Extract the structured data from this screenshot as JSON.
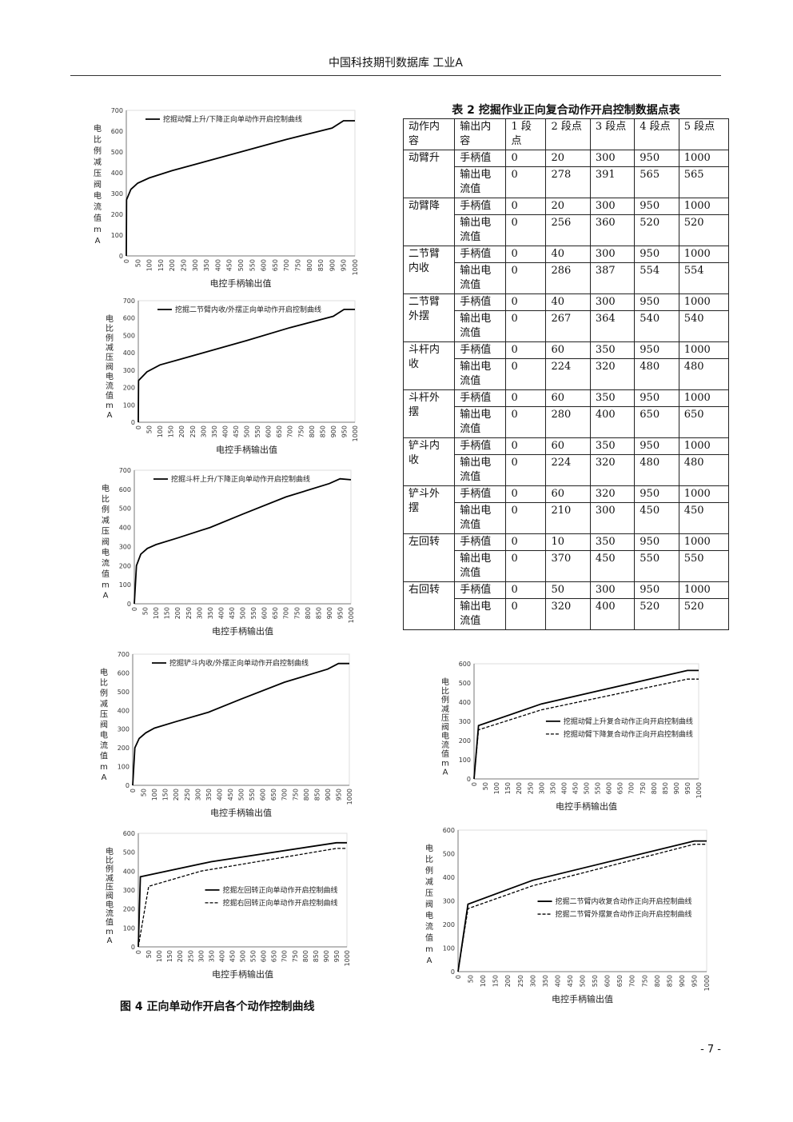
{
  "header": "中国科技期刊数据库 工业A",
  "table": {
    "title": "表 2 挖掘作业正向复合动作开启控制数据点表",
    "headers": [
      "动作内容",
      "输出内容",
      "1 段点",
      "2 段点",
      "3 段点",
      "4 段点",
      "5 段点"
    ],
    "groups": [
      {
        "action": "动臂升",
        "rows": [
          [
            "手柄值",
            "0",
            "20",
            "300",
            "950",
            "1000"
          ],
          [
            "输出电流值",
            "0",
            "278",
            "391",
            "565",
            "565"
          ]
        ]
      },
      {
        "action": "动臂降",
        "rows": [
          [
            "手柄值",
            "0",
            "20",
            "300",
            "950",
            "1000"
          ],
          [
            "输出电流值",
            "0",
            "256",
            "360",
            "520",
            "520"
          ]
        ]
      },
      {
        "action": "二节臂内收",
        "rows": [
          [
            "手柄值",
            "0",
            "40",
            "300",
            "950",
            "1000"
          ],
          [
            "输出电流值",
            "0",
            "286",
            "387",
            "554",
            "554"
          ]
        ]
      },
      {
        "action": "二节臂外摆",
        "rows": [
          [
            "手柄值",
            "0",
            "40",
            "300",
            "950",
            "1000"
          ],
          [
            "输出电流值",
            "0",
            "267",
            "364",
            "540",
            "540"
          ]
        ]
      },
      {
        "action": "斗杆内收",
        "rows": [
          [
            "手柄值",
            "0",
            "60",
            "350",
            "950",
            "1000"
          ],
          [
            "输出电流值",
            "0",
            "224",
            "320",
            "480",
            "480"
          ]
        ]
      },
      {
        "action": "斗杆外摆",
        "rows": [
          [
            "手柄值",
            "0",
            "60",
            "350",
            "950",
            "1000"
          ],
          [
            "输出电流值",
            "0",
            "280",
            "400",
            "650",
            "650"
          ]
        ]
      },
      {
        "action": "铲斗内收",
        "rows": [
          [
            "手柄值",
            "0",
            "60",
            "350",
            "950",
            "1000"
          ],
          [
            "输出电流值",
            "0",
            "224",
            "320",
            "480",
            "480"
          ]
        ]
      },
      {
        "action": "铲斗外摆",
        "rows": [
          [
            "手柄值",
            "0",
            "60",
            "320",
            "950",
            "1000"
          ],
          [
            "输出电流值",
            "0",
            "210",
            "300",
            "450",
            "450"
          ]
        ]
      },
      {
        "action": "左回转",
        "rows": [
          [
            "手柄值",
            "0",
            "10",
            "350",
            "950",
            "1000"
          ],
          [
            "输出电流值",
            "0",
            "370",
            "450",
            "550",
            "550"
          ]
        ]
      },
      {
        "action": "右回转",
        "rows": [
          [
            "手柄值",
            "0",
            "50",
            "300",
            "950",
            "1000"
          ],
          [
            "输出电流值",
            "0",
            "320",
            "400",
            "520",
            "520"
          ]
        ]
      }
    ]
  },
  "figure_caption": "图 4 正向单动作开启各个动作控制曲线",
  "page_number": "- 7 -",
  "chart_data": [
    {
      "type": "line",
      "xlabel": "电控手柄输出值",
      "ylabel": "电比例减压阀电流值mA",
      "ylim": [
        0,
        700
      ],
      "yticks": [
        "0",
        "100",
        "200",
        "300",
        "400",
        "500",
        "600",
        "700"
      ],
      "xlim": [
        0,
        1000
      ],
      "xticks": [
        "0",
        "50",
        "100",
        "150",
        "200",
        "250",
        "300",
        "350",
        "400",
        "450",
        "500",
        "550",
        "600",
        "650",
        "700",
        "750",
        "800",
        "850",
        "900",
        "950",
        "1000"
      ],
      "legend_position": "top",
      "series": [
        {
          "name": "挖掘动臂上升/下降正向单动作开启控制曲线",
          "style": "solid",
          "x": [
            0,
            1,
            20,
            50,
            100,
            200,
            300,
            500,
            700,
            900,
            950,
            1000
          ],
          "y": [
            0,
            270,
            320,
            350,
            375,
            410,
            440,
            500,
            560,
            615,
            650,
            650
          ]
        }
      ]
    },
    {
      "type": "line",
      "xlabel": "电控手柄输出值",
      "ylabel": "电比例减压阀电流值mA",
      "ylim": [
        0,
        700
      ],
      "yticks": [
        "0",
        "100",
        "200",
        "300",
        "400",
        "500",
        "600",
        "700"
      ],
      "xlim": [
        0,
        1000
      ],
      "xticks": [
        "0",
        "50",
        "100",
        "150",
        "200",
        "250",
        "300",
        "350",
        "400",
        "450",
        "500",
        "550",
        "600",
        "650",
        "700",
        "750",
        "800",
        "850",
        "900",
        "950",
        "1000"
      ],
      "legend_position": "top",
      "series": [
        {
          "name": "挖掘二节臂内收/外摆正向单动作开启控制曲线",
          "style": "solid",
          "x": [
            0,
            1,
            40,
            100,
            200,
            300,
            500,
            700,
            900,
            950,
            1000
          ],
          "y": [
            0,
            240,
            290,
            330,
            365,
            400,
            470,
            545,
            610,
            650,
            650
          ]
        }
      ]
    },
    {
      "type": "line",
      "xlabel": "电控手柄输出值",
      "ylabel": "电比例减压阀电流值mA",
      "ylim": [
        0,
        700
      ],
      "yticks": [
        "0",
        "100",
        "200",
        "300",
        "400",
        "500",
        "600",
        "700"
      ],
      "xlim": [
        0,
        1000
      ],
      "xticks": [
        "0",
        "50",
        "100",
        "150",
        "200",
        "250",
        "300",
        "350",
        "400",
        "450",
        "500",
        "550",
        "600",
        "650",
        "700",
        "750",
        "800",
        "850",
        "900",
        "950",
        "1000"
      ],
      "legend_position": "top",
      "series": [
        {
          "name": "挖掘斗杆上升/下降正向单动作开启控制曲线",
          "style": "solid",
          "x": [
            0,
            10,
            30,
            60,
            100,
            200,
            350,
            500,
            700,
            900,
            950,
            1000
          ],
          "y": [
            0,
            200,
            260,
            290,
            310,
            345,
            400,
            470,
            560,
            630,
            655,
            650
          ]
        }
      ]
    },
    {
      "type": "line",
      "xlabel": "电控手柄输出值",
      "ylabel": "电比例减压阀电流值mA",
      "ylim": [
        0,
        700
      ],
      "yticks": [
        "0",
        "100",
        "200",
        "300",
        "400",
        "500",
        "600",
        "700"
      ],
      "xlim": [
        0,
        1000
      ],
      "xticks": [
        "0",
        "50",
        "100",
        "150",
        "200",
        "250",
        "300",
        "350",
        "400",
        "450",
        "500",
        "550",
        "600",
        "650",
        "700",
        "750",
        "800",
        "850",
        "900",
        "950",
        "1000"
      ],
      "legend_position": "top",
      "series": [
        {
          "name": "挖掘铲斗内收/外摆正向单动作开启控制曲线",
          "style": "solid",
          "x": [
            0,
            10,
            30,
            60,
            100,
            200,
            350,
            500,
            700,
            900,
            950,
            1000
          ],
          "y": [
            0,
            200,
            250,
            280,
            305,
            340,
            390,
            460,
            550,
            620,
            650,
            650
          ]
        }
      ]
    },
    {
      "type": "line",
      "xlabel": "电控手柄输出值",
      "ylabel": "电比例减压阀电流值mA",
      "ylim": [
        0,
        600
      ],
      "yticks": [
        "0",
        "100",
        "200",
        "300",
        "400",
        "500",
        "600"
      ],
      "xlim": [
        0,
        1000
      ],
      "xticks": [
        "0",
        "50",
        "100",
        "150",
        "200",
        "250",
        "300",
        "350",
        "400",
        "450",
        "500",
        "550",
        "600",
        "650",
        "700",
        "750",
        "800",
        "850",
        "900",
        "950",
        "1000"
      ],
      "legend_position": "center-right",
      "series": [
        {
          "name": "挖掘动臂上升复合动作正向开启控制曲线",
          "style": "solid",
          "x": [
            0,
            20,
            300,
            950,
            1000
          ],
          "y": [
            0,
            278,
            391,
            565,
            565
          ]
        },
        {
          "name": "挖掘动臂下降复合动作正向开启控制曲线",
          "style": "dashed",
          "x": [
            0,
            20,
            300,
            950,
            1000
          ],
          "y": [
            0,
            256,
            360,
            520,
            520
          ]
        }
      ]
    },
    {
      "type": "line",
      "xlabel": "电控手柄输出值",
      "ylabel": "电比例减压阀电流值mA",
      "ylim": [
        0,
        600
      ],
      "yticks": [
        "0",
        "100",
        "200",
        "300",
        "400",
        "500",
        "600"
      ],
      "xlim": [
        0,
        1000
      ],
      "xticks": [
        "0",
        "50",
        "100",
        "150",
        "200",
        "250",
        "300",
        "350",
        "400",
        "450",
        "500",
        "550",
        "600",
        "650",
        "700",
        "750",
        "800",
        "850",
        "900",
        "950",
        "1000"
      ],
      "legend_position": "center-right",
      "series": [
        {
          "name": "挖掘左回转正向单动作开启控制曲线",
          "style": "solid",
          "x": [
            0,
            10,
            350,
            950,
            1000
          ],
          "y": [
            0,
            370,
            450,
            550,
            550
          ]
        },
        {
          "name": "挖掘右回转正向单动作开启控制曲线",
          "style": "dashed",
          "x": [
            0,
            50,
            300,
            950,
            1000
          ],
          "y": [
            0,
            320,
            400,
            520,
            520
          ]
        }
      ]
    },
    {
      "type": "line",
      "xlabel": "电控手柄输出值",
      "ylabel": "电比例减压阀电流值mA",
      "ylim": [
        0,
        600
      ],
      "yticks": [
        "0",
        "100",
        "200",
        "300",
        "400",
        "500",
        "600"
      ],
      "xlim": [
        0,
        1000
      ],
      "xticks": [
        "0",
        "50",
        "100",
        "150",
        "200",
        "250",
        "300",
        "350",
        "400",
        "450",
        "500",
        "550",
        "600",
        "650",
        "700",
        "750",
        "800",
        "850",
        "900",
        "950",
        "1000"
      ],
      "legend_position": "center-right",
      "series": [
        {
          "name": "挖掘二节臂内收复合动作正向开启控制曲线",
          "style": "solid",
          "x": [
            0,
            40,
            300,
            950,
            1000
          ],
          "y": [
            0,
            286,
            387,
            554,
            554
          ]
        },
        {
          "name": "挖掘二节臂外摆复合动作正向开启控制曲线",
          "style": "dashed",
          "x": [
            0,
            40,
            300,
            950,
            1000
          ],
          "y": [
            0,
            267,
            364,
            540,
            540
          ]
        }
      ]
    }
  ]
}
